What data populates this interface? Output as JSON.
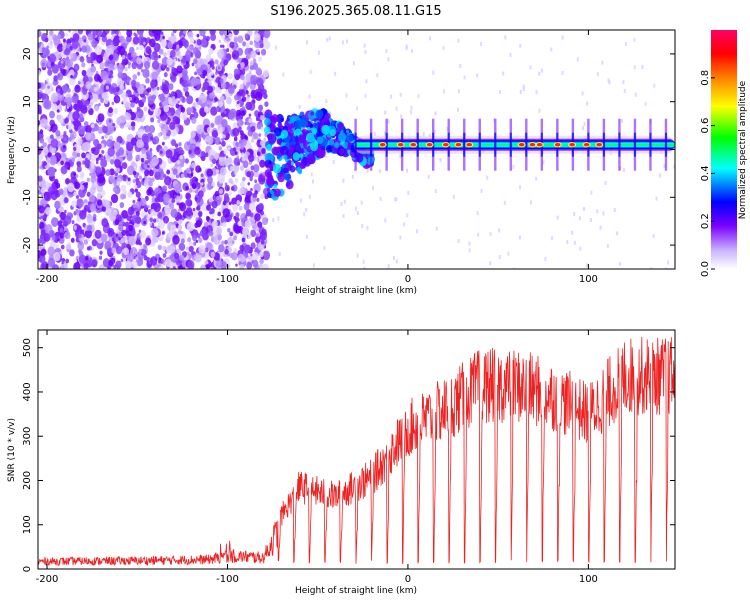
{
  "figure_title": "S196.2025.365.08.11.G15",
  "chart_data": [
    {
      "type": "heatmap",
      "xlabel": "Height of straight line (km)",
      "ylabel": "Frequency (Hz)",
      "xlim": [
        -205,
        148
      ],
      "ylim": [
        -25,
        25
      ],
      "xticks": [
        -200,
        -100,
        0,
        100
      ],
      "yticks": [
        -20,
        -10,
        0,
        10,
        20
      ],
      "colorbar": {
        "label": "Normalized spectral amplitude",
        "range": [
          0,
          1
        ],
        "ticks": [
          0.0,
          0.2,
          0.4,
          0.6,
          0.8
        ],
        "colormap": [
          "#ffffff",
          "#c9b6ff",
          "#6a00ff",
          "#0000ff",
          "#00ffff",
          "#00ff00",
          "#ffff00",
          "#ff8000",
          "#ff0000",
          "#ff0066"
        ]
      },
      "features": {
        "noise_region_km": [
          -205,
          -78
        ],
        "turbulent_region_km": [
          -78,
          -30
        ],
        "stable_line_region_km": [
          -30,
          148
        ],
        "center_frequency_hz": 1
      }
    },
    {
      "type": "line",
      "xlabel": "Height of straight line (km)",
      "ylabel": "SNR (10 * v/v)",
      "xlim": [
        -205,
        148
      ],
      "ylim": [
        0,
        540
      ],
      "xticks": [
        -200,
        -100,
        0,
        100
      ],
      "yticks": [
        0,
        100,
        200,
        300,
        400,
        500
      ],
      "line_color": "#ee2222",
      "envelope": {
        "x": [
          -205,
          -150,
          -110,
          -100,
          -80,
          -72,
          -60,
          -40,
          -20,
          -10,
          0,
          20,
          40,
          60,
          80,
          100,
          120,
          140,
          148
        ],
        "y": [
          20,
          22,
          25,
          35,
          30,
          100,
          170,
          150,
          190,
          240,
          290,
          330,
          380,
          380,
          360,
          320,
          400,
          400,
          400
        ]
      },
      "dropouts_start_km": -72,
      "dropouts_spacing_km": 8.6,
      "dropouts_min_value": 12
    }
  ]
}
